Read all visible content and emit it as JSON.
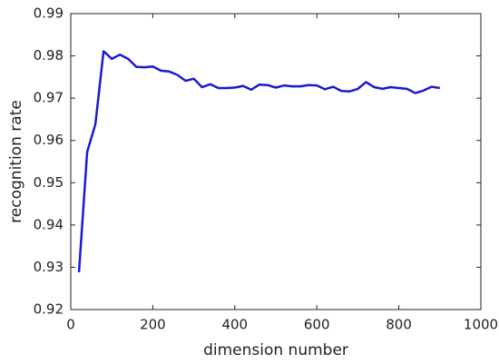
{
  "chart_data": {
    "type": "line",
    "x_label": "dimension number",
    "y_label": "recognition rate",
    "x": [
      20,
      40,
      60,
      80,
      100,
      120,
      140,
      160,
      180,
      200,
      220,
      240,
      260,
      280,
      300,
      320,
      340,
      360,
      380,
      400,
      420,
      440,
      460,
      480,
      500,
      520,
      540,
      560,
      580,
      600,
      620,
      640,
      660,
      680,
      700,
      720,
      740,
      760,
      780,
      800,
      820,
      840,
      860,
      880,
      900
    ],
    "series": [
      {
        "color": "#1a1ad6",
        "values": [
          0.9288,
          0.9573,
          0.9638,
          0.9811,
          0.9793,
          0.9803,
          0.9793,
          0.9774,
          0.9773,
          0.9775,
          0.9765,
          0.9763,
          0.9755,
          0.9741,
          0.9746,
          0.9726,
          0.9733,
          0.9724,
          0.9724,
          0.9725,
          0.9729,
          0.972,
          0.9732,
          0.9731,
          0.9725,
          0.973,
          0.9728,
          0.9728,
          0.9731,
          0.973,
          0.9721,
          0.9727,
          0.9717,
          0.9716,
          0.9722,
          0.9738,
          0.9726,
          0.9722,
          0.9726,
          0.9724,
          0.9722,
          0.9712,
          0.9718,
          0.9727,
          0.9724
        ]
      }
    ],
    "xlim": [
      0,
      1000
    ],
    "xticks": [
      0,
      200,
      400,
      600,
      800,
      1000
    ],
    "ylim": [
      0.92,
      0.99
    ],
    "yticks": [
      0.92,
      0.93,
      0.94,
      0.95,
      0.96,
      0.97,
      0.98,
      0.99
    ]
  }
}
